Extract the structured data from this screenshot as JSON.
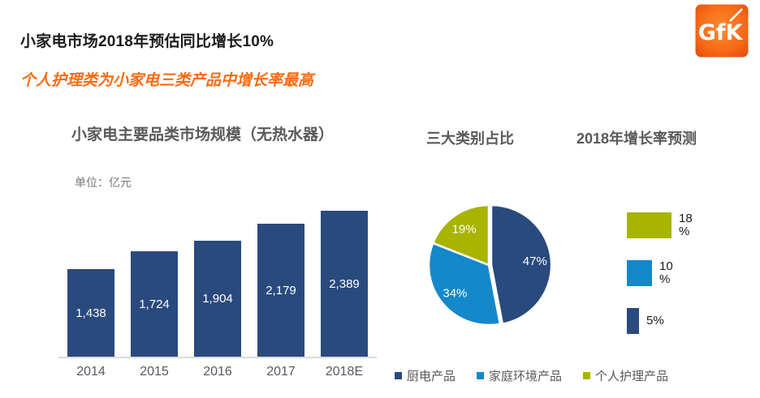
{
  "header": {
    "title": "小家电市场2018年预估同比增长10%",
    "subtitle": "个人护理类为小家电三类产品中增长率最高",
    "logo_text": "GfK"
  },
  "colors": {
    "navy": "#2A4A7E",
    "blue": "#1588CA",
    "olive": "#A8B400",
    "orange": "#F96B12",
    "title_black": "#1B1B1B",
    "gray_text": "#595959",
    "axis_line": "#DBDBDB",
    "label_white": "#FFFFFF"
  },
  "chart_data": [
    {
      "id": "bar_chart",
      "type": "bar",
      "title": "小家电主要品类市场规模（无热水器）",
      "unit_label": "单位：亿元",
      "categories": [
        "2014",
        "2015",
        "2016",
        "2017",
        "2018E"
      ],
      "values": [
        1438,
        1724,
        1904,
        2179,
        2389
      ],
      "value_labels": [
        "1,438",
        "1,724",
        "1,904",
        "2,179",
        "2,389"
      ],
      "ylim": [
        0,
        2500
      ],
      "grid": false,
      "bar_color": "navy",
      "value_label_position": "center-inside"
    },
    {
      "id": "pie_chart",
      "type": "pie",
      "title": "三大类别占比",
      "start_angle_deg": 0,
      "direction": "clockwise",
      "slices": [
        {
          "label": "厨电产品",
          "value": 47,
          "text": "47%",
          "color": "navy",
          "exploded": true
        },
        {
          "label": "家庭环境产品",
          "value": 34,
          "text": "34%",
          "color": "blue",
          "exploded": false
        },
        {
          "label": "个人护理产品",
          "value": 19,
          "text": "19%",
          "color": "olive",
          "exploded": false
        }
      ]
    },
    {
      "id": "growth_chart",
      "type": "bar",
      "orientation": "horizontal",
      "title": "2018年增长率预测",
      "categories": [
        "个人护理产品",
        "家庭环境产品",
        "厨电产品"
      ],
      "values": [
        18,
        10,
        5
      ],
      "value_labels": [
        "18\n%",
        "10\n%",
        "5%"
      ],
      "colors": [
        "olive",
        "blue",
        "navy"
      ],
      "xlim": [
        0,
        20
      ]
    }
  ],
  "legend": {
    "items": [
      {
        "label": "厨电产品",
        "color": "navy"
      },
      {
        "label": "家庭环境产品",
        "color": "blue"
      },
      {
        "label": "个人护理产品",
        "color": "olive"
      }
    ]
  }
}
